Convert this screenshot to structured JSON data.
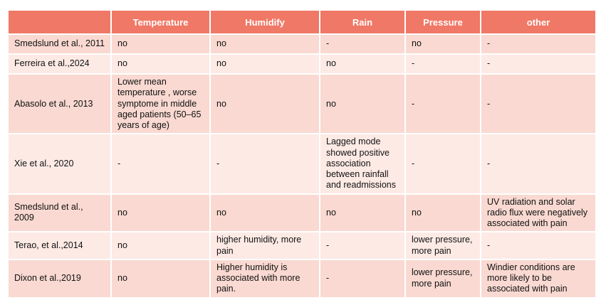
{
  "table": {
    "header": {
      "study_col": "",
      "columns": [
        "Temperature",
        "Humidify",
        "Rain",
        "Pressure",
        "other"
      ]
    },
    "rows": [
      {
        "study": "Smedslund et al., 2011",
        "temperature": "no",
        "humidify": "no",
        "rain": "-",
        "pressure": "no",
        "other": "-"
      },
      {
        "study": "Ferreira et al.,2024",
        "temperature": "no",
        "humidify": "no",
        "rain": "no",
        "pressure": "-",
        "other": "-"
      },
      {
        "study": "Abasolo et al., 2013",
        "temperature": "Lower mean temperature , worse symptome in middle aged patients (50–65 years of age)",
        "humidify": "no",
        "rain": "no",
        "pressure": "-",
        "other": "-"
      },
      {
        "study": "Xie et al., 2020",
        "temperature": "-",
        "humidify": "-",
        "rain": "Lagged mode showed positive association between rainfall and readmissions",
        "pressure": "-",
        "other": "-"
      },
      {
        "study": "Smedslund et al., 2009",
        "temperature": "no",
        "humidify": "no",
        "rain": "no",
        "pressure": "no",
        "other": "UV radiation and solar radio flux were negatively associated with pain"
      },
      {
        "study": "Terao, et al.,2014",
        "temperature": "no",
        "humidify": "higher humidity, more pain",
        "rain": "-",
        "pressure": "lower pressure, more pain",
        "other": "-"
      },
      {
        "study": "Dixon et al.,2019",
        "temperature": "no",
        "humidify": "Higher humidity is associated with more pain.",
        "rain": "-",
        "pressure": "lower pressure, more pain",
        "other": "Windier conditions are more likely to be associated with pain"
      }
    ]
  },
  "colors": {
    "header_bg": "#F07866",
    "header_text": "#FFFFFF",
    "row_dark_bg": "#F9D9D1",
    "row_light_bg": "#FDEAE5",
    "body_text": "#111111",
    "grid_gap": "#FFFFFF"
  }
}
